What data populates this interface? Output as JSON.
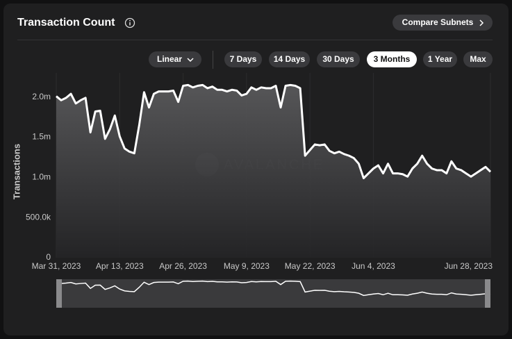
{
  "header": {
    "title": "Transaction Count",
    "compare_button": "Compare Subnets"
  },
  "controls": {
    "scale": "Linear",
    "ranges": [
      "7 Days",
      "14 Days",
      "30 Days",
      "3 Months",
      "1 Year",
      "Max"
    ],
    "selected": 3
  },
  "chart_data": {
    "type": "area",
    "y_label": "Transactions",
    "watermark": "AVALANCHE",
    "color": "#ffffff",
    "x": [
      "2023-03-31",
      "2023-04-01",
      "2023-04-02",
      "2023-04-03",
      "2023-04-04",
      "2023-04-05",
      "2023-04-06",
      "2023-04-07",
      "2023-04-08",
      "2023-04-09",
      "2023-04-10",
      "2023-04-11",
      "2023-04-12",
      "2023-04-13",
      "2023-04-14",
      "2023-04-15",
      "2023-04-16",
      "2023-04-17",
      "2023-04-18",
      "2023-04-19",
      "2023-04-20",
      "2023-04-21",
      "2023-04-22",
      "2023-04-23",
      "2023-04-24",
      "2023-04-25",
      "2023-04-26",
      "2023-04-27",
      "2023-04-28",
      "2023-04-29",
      "2023-04-30",
      "2023-05-01",
      "2023-05-02",
      "2023-05-03",
      "2023-05-04",
      "2023-05-05",
      "2023-05-06",
      "2023-05-07",
      "2023-05-08",
      "2023-05-09",
      "2023-05-10",
      "2023-05-11",
      "2023-05-12",
      "2023-05-13",
      "2023-05-14",
      "2023-05-15",
      "2023-05-16",
      "2023-05-17",
      "2023-05-18",
      "2023-05-19",
      "2023-05-20",
      "2023-05-21",
      "2023-05-22",
      "2023-05-23",
      "2023-05-24",
      "2023-05-25",
      "2023-05-26",
      "2023-05-27",
      "2023-05-28",
      "2023-05-29",
      "2023-05-30",
      "2023-05-31",
      "2023-06-01",
      "2023-06-02",
      "2023-06-03",
      "2023-06-04",
      "2023-06-05",
      "2023-06-06",
      "2023-06-07",
      "2023-06-08",
      "2023-06-09",
      "2023-06-10",
      "2023-06-11",
      "2023-06-12",
      "2023-06-13",
      "2023-06-14",
      "2023-06-15",
      "2023-06-16",
      "2023-06-17",
      "2023-06-18",
      "2023-06-19",
      "2023-06-20",
      "2023-06-21",
      "2023-06-22",
      "2023-06-23",
      "2023-06-24",
      "2023-06-25",
      "2023-06-26",
      "2023-06-27",
      "2023-06-28"
    ],
    "values": [
      2010000,
      1960000,
      1990000,
      2040000,
      1920000,
      1960000,
      1990000,
      1560000,
      1820000,
      1830000,
      1480000,
      1600000,
      1770000,
      1510000,
      1360000,
      1320000,
      1300000,
      1650000,
      2060000,
      1870000,
      2040000,
      2070000,
      2070000,
      2070000,
      2080000,
      1940000,
      2140000,
      2150000,
      2120000,
      2140000,
      2150000,
      2110000,
      2130000,
      2090000,
      2090000,
      2070000,
      2090000,
      2080000,
      2020000,
      2040000,
      2120000,
      2090000,
      2120000,
      2110000,
      2110000,
      2140000,
      1870000,
      2140000,
      2150000,
      2140000,
      2110000,
      1270000,
      1340000,
      1410000,
      1400000,
      1410000,
      1330000,
      1300000,
      1320000,
      1290000,
      1270000,
      1240000,
      1170000,
      990000,
      1050000,
      1110000,
      1150000,
      1050000,
      1170000,
      1050000,
      1050000,
      1040000,
      1010000,
      1110000,
      1170000,
      1270000,
      1170000,
      1110000,
      1090000,
      1090000,
      1050000,
      1200000,
      1110000,
      1090000,
      1050000,
      1010000,
      1050000,
      1090000,
      1130000,
      1070000
    ],
    "xlim": [
      "2023-03-31",
      "2023-06-28"
    ],
    "xticks": [
      {
        "value": "2023-03-31",
        "label": "Mar 31, 2023"
      },
      {
        "value": "2023-04-13",
        "label": "Apr 13, 2023"
      },
      {
        "value": "2023-04-26",
        "label": "Apr 26, 2023"
      },
      {
        "value": "2023-05-09",
        "label": "May 9, 2023"
      },
      {
        "value": "2023-05-22",
        "label": "May 22, 2023"
      },
      {
        "value": "2023-06-04",
        "label": "Jun 4, 2023"
      },
      {
        "value": "2023-06-28",
        "label": "Jun 28, 2023"
      }
    ],
    "ylim": [
      0,
      2300000
    ],
    "yticks": [
      0,
      {
        "value": 500000,
        "label": "500.0k"
      },
      {
        "value": 1000000,
        "label": "1.0m"
      },
      {
        "value": 1500000,
        "label": "1.5m"
      },
      {
        "value": 2000000,
        "label": "2.0m"
      }
    ],
    "grid": true
  }
}
